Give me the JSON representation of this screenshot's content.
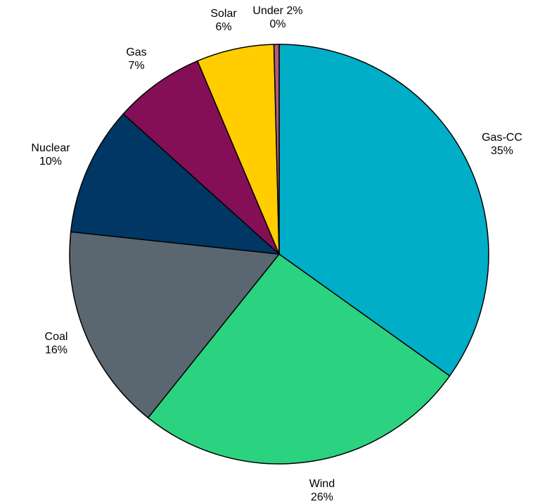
{
  "chart_data": {
    "type": "pie",
    "start": "top",
    "direction": "clockwise",
    "slices": [
      {
        "label": "Gas-CC",
        "value": 35,
        "value_label": "35%",
        "color": "#00AEC7"
      },
      {
        "label": "Wind",
        "value": 26,
        "value_label": "26%",
        "color": "#2BD27F"
      },
      {
        "label": "Coal",
        "value": 16,
        "value_label": "16%",
        "color": "#5B6770"
      },
      {
        "label": "Nuclear",
        "value": 10,
        "value_label": "10%",
        "color": "#003764"
      },
      {
        "label": "Gas",
        "value": 7,
        "value_label": "7%",
        "color": "#850F56"
      },
      {
        "label": "Solar",
        "value": 6,
        "value_label": "6%",
        "color": "#FFCD00"
      },
      {
        "label": "Under 2%",
        "value": 0.4,
        "value_label": "0%",
        "color": "#B35A7C"
      }
    ]
  }
}
